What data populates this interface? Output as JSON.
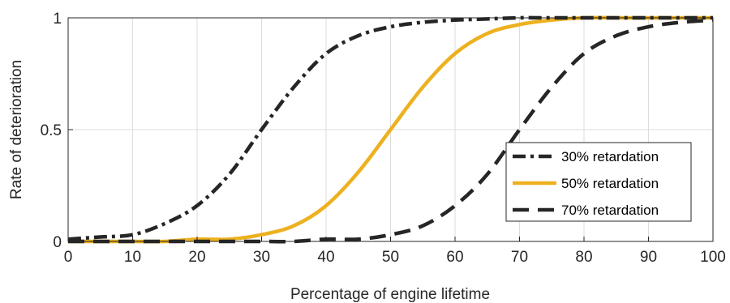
{
  "chart_data": {
    "type": "line",
    "title": "",
    "xlabel": "Percentage of engine lifetime",
    "ylabel": "Rate of deterioration",
    "xlim": [
      0,
      100
    ],
    "ylim": [
      0,
      1
    ],
    "x_ticks": [
      "0",
      "10",
      "20",
      "30",
      "40",
      "50",
      "60",
      "70",
      "80",
      "90",
      "100"
    ],
    "y_ticks": [
      "0",
      "0.5",
      "1"
    ],
    "grid": true,
    "legend_position": "lower-right",
    "x": [
      0,
      5,
      10,
      15,
      20,
      25,
      30,
      35,
      40,
      45,
      50,
      55,
      60,
      65,
      70,
      75,
      80,
      85,
      90,
      95,
      100
    ],
    "series": [
      {
        "name": "30% retardation",
        "style": "dash-dot",
        "color": "#262626",
        "values": [
          0.01,
          0.02,
          0.03,
          0.08,
          0.16,
          0.3,
          0.5,
          0.69,
          0.84,
          0.92,
          0.96,
          0.98,
          0.99,
          0.995,
          1.0,
          1.0,
          1.0,
          1.0,
          1.0,
          1.0,
          1.0
        ]
      },
      {
        "name": "50% retardation",
        "style": "solid",
        "color": "#EDB120",
        "values": [
          0.0,
          0.0,
          0.0,
          0.0,
          0.01,
          0.01,
          0.03,
          0.07,
          0.16,
          0.31,
          0.5,
          0.69,
          0.84,
          0.93,
          0.97,
          0.99,
          1.0,
          1.0,
          1.0,
          1.0,
          1.0
        ]
      },
      {
        "name": "70% retardation",
        "style": "dashed",
        "color": "#262626",
        "values": [
          0.0,
          0.0,
          0.0,
          0.0,
          0.0,
          0.0,
          0.0,
          0.0,
          0.01,
          0.01,
          0.03,
          0.07,
          0.16,
          0.3,
          0.5,
          0.69,
          0.84,
          0.92,
          0.96,
          0.98,
          0.99
        ]
      }
    ]
  }
}
